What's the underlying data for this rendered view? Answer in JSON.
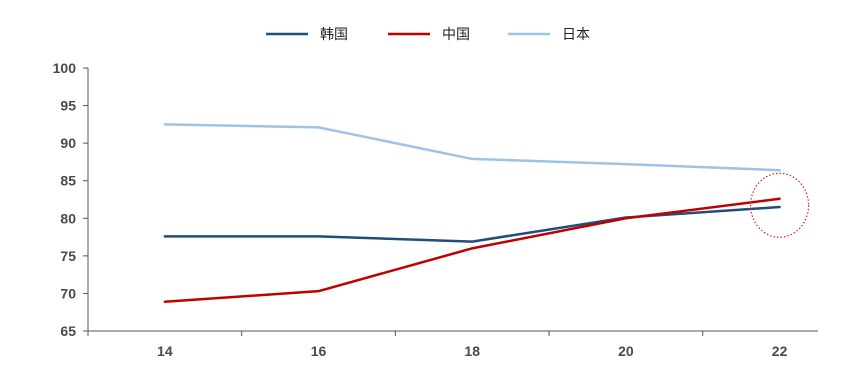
{
  "chart_data": {
    "type": "line",
    "title": "",
    "xlabel": "",
    "ylabel": "",
    "x": [
      14,
      16,
      18,
      20,
      22
    ],
    "xlim": [
      13,
      22.5
    ],
    "ylim": [
      65,
      100
    ],
    "yticks": [
      65,
      70,
      75,
      80,
      85,
      90,
      95,
      100
    ],
    "grid": false,
    "legend_position": "top-center",
    "series": [
      {
        "name": "韩国",
        "color": "#1f4e79",
        "values": [
          77.6,
          77.6,
          76.9,
          80.1,
          81.5
        ]
      },
      {
        "name": "中国",
        "color": "#c00000",
        "values": [
          68.9,
          70.3,
          76.0,
          80.0,
          82.6
        ]
      },
      {
        "name": "日本",
        "color": "#9dc3e6",
        "values": [
          92.5,
          92.1,
          87.9,
          87.2,
          86.4
        ]
      }
    ],
    "annotation": {
      "type": "dotted-circle",
      "color": "#e02020",
      "x": 22,
      "y": 82
    }
  }
}
